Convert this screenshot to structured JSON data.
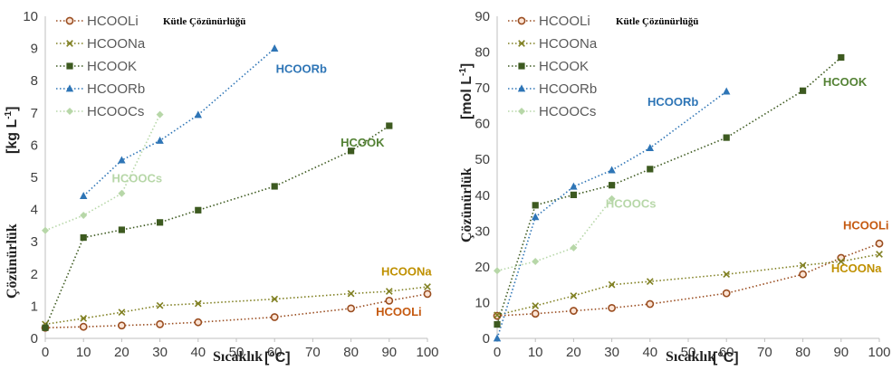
{
  "chart_data": [
    {
      "type": "line",
      "title": "Kütle Çözünürlüğü",
      "xlabel": "Sıcaklık",
      "xunit": "[°C]",
      "ylabel": "Çözünürlük",
      "yunit": "[kg L",
      "yunit_sup": "-1",
      "yunit_close": "]",
      "xlim": [
        0,
        100
      ],
      "ylim": [
        0,
        10
      ],
      "xticks": [
        0,
        10,
        20,
        30,
        40,
        50,
        60,
        70,
        80,
        90,
        100
      ],
      "yticks": [
        0,
        1,
        2,
        3,
        4,
        5,
        6,
        7,
        8,
        9,
        10
      ],
      "legend_position": "top-left",
      "series": [
        {
          "name": "HCOOLi",
          "marker": "circle",
          "color": "#9a4d20",
          "x": [
            0,
            10,
            20,
            30,
            40,
            60,
            80,
            90,
            100
          ],
          "y": [
            0.33,
            0.36,
            0.4,
            0.44,
            0.5,
            0.66,
            0.93,
            1.17,
            1.38
          ]
        },
        {
          "name": "HCOONa",
          "marker": "x",
          "color": "#7f7f20",
          "x": [
            0,
            10,
            20,
            30,
            40,
            60,
            80,
            90,
            100
          ],
          "y": [
            0.44,
            0.62,
            0.81,
            1.02,
            1.08,
            1.22,
            1.39,
            1.46,
            1.6
          ]
        },
        {
          "name": "HCOOK",
          "marker": "square",
          "color": "#3d5a20",
          "x": [
            0,
            10,
            20,
            30,
            40,
            60,
            80,
            90
          ],
          "y": [
            0.33,
            3.13,
            3.37,
            3.6,
            3.98,
            4.72,
            5.82,
            6.6
          ]
        },
        {
          "name": "HCOORb",
          "marker": "triangle",
          "color": "#2e75b6",
          "x": [
            10,
            20,
            30,
            40,
            60
          ],
          "y": [
            4.42,
            5.53,
            6.14,
            6.94,
            9.0
          ]
        },
        {
          "name": "HCOOCs",
          "marker": "diamond",
          "color": "#b7d7a8",
          "x": [
            0,
            10,
            20,
            30
          ],
          "y": [
            3.35,
            3.82,
            4.5,
            6.95
          ]
        }
      ],
      "annotations": [
        {
          "text": "HCOORb",
          "color": "#2e75b6",
          "x": 67,
          "y": 8.25
        },
        {
          "text": "HCOOK",
          "color": "#548235",
          "x": 83,
          "y": 5.95
        },
        {
          "text": "HCOOCs",
          "color": "#b7d7a8",
          "x": 24,
          "y": 4.85
        },
        {
          "text": "HCOONa",
          "color": "#bf9000",
          "x": 94.5,
          "y": 1.95
        },
        {
          "text": "HCOOLi",
          "color": "#c55a11",
          "x": 92.5,
          "y": 0.7
        }
      ]
    },
    {
      "type": "line",
      "title": "Kütle Çözünürlüğü",
      "xlabel": "Sıcaklık",
      "xunit": "[°C]",
      "ylabel": "Çözünürlük",
      "yunit": "[mol L",
      "yunit_sup": "-1",
      "yunit_close": "]",
      "xlim": [
        0,
        100
      ],
      "ylim": [
        0,
        90
      ],
      "xticks": [
        0,
        10,
        20,
        30,
        40,
        50,
        60,
        70,
        80,
        90,
        100
      ],
      "yticks": [
        0,
        10,
        20,
        30,
        40,
        50,
        60,
        70,
        80,
        90
      ],
      "legend_position": "top-left",
      "series": [
        {
          "name": "HCOOLi",
          "marker": "circle",
          "color": "#9a4d20",
          "x": [
            0,
            10,
            20,
            30,
            40,
            60,
            80,
            90,
            100
          ],
          "y": [
            6.3,
            6.9,
            7.7,
            8.5,
            9.6,
            12.6,
            17.9,
            22.5,
            26.5
          ]
        },
        {
          "name": "HCOONa",
          "marker": "x",
          "color": "#7f7f20",
          "x": [
            0,
            10,
            20,
            30,
            40,
            60,
            80,
            90,
            100
          ],
          "y": [
            6.5,
            9.1,
            11.9,
            15.0,
            15.9,
            17.9,
            20.4,
            21.5,
            23.5
          ]
        },
        {
          "name": "HCOOK",
          "marker": "square",
          "color": "#3d5a20",
          "x": [
            0,
            10,
            20,
            30,
            40,
            60,
            80,
            90
          ],
          "y": [
            3.9,
            37.2,
            40.1,
            42.8,
            47.3,
            56.1,
            69.2,
            78.5
          ]
        },
        {
          "name": "HCOORb",
          "marker": "triangle",
          "color": "#2e75b6",
          "x": [
            0,
            10,
            20,
            30,
            40,
            60
          ],
          "y": [
            0,
            33.9,
            42.4,
            47.0,
            53.2,
            69.0
          ]
        },
        {
          "name": "HCOOCs",
          "marker": "diamond",
          "color": "#b7d7a8",
          "x": [
            0,
            10,
            20,
            30
          ],
          "y": [
            18.9,
            21.5,
            25.3,
            39.0
          ]
        }
      ],
      "annotations": [
        {
          "text": "HCOORb",
          "color": "#2e75b6",
          "x": 46,
          "y": 65
        },
        {
          "text": "HCOOK",
          "color": "#548235",
          "x": 91,
          "y": 70.5
        },
        {
          "text": "HCOOCs",
          "color": "#b7d7a8",
          "x": 35,
          "y": 36.5
        },
        {
          "text": "HCOOLi",
          "color": "#c55a11",
          "x": 96.5,
          "y": 30.5
        },
        {
          "text": "HCOONa",
          "color": "#bf9000",
          "x": 94,
          "y": 18.5
        }
      ]
    }
  ]
}
